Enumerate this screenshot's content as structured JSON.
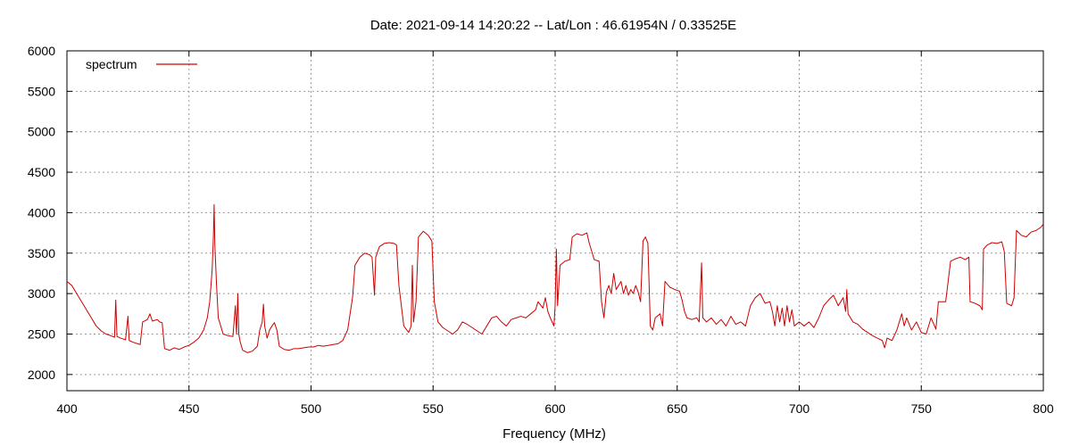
{
  "chart_data": {
    "type": "line",
    "title": "Date: 2021-09-14 14:20:22  --  Lat/Lon : 46.61954N / 0.33525E",
    "xlabel": "Frequency (MHz)",
    "ylabel": "",
    "xlim": [
      400,
      800
    ],
    "ylim": [
      1800,
      6000
    ],
    "x_ticks": [
      400,
      450,
      500,
      550,
      600,
      650,
      700,
      750,
      800
    ],
    "y_ticks": [
      2000,
      2500,
      3000,
      3500,
      4000,
      4500,
      5000,
      5500,
      6000
    ],
    "grid": true,
    "legend_position": "top-left",
    "series": [
      {
        "name": "spectrum",
        "color": "#cc0000",
        "points": [
          [
            400,
            3150
          ],
          [
            402,
            3100
          ],
          [
            404,
            3000
          ],
          [
            406,
            2900
          ],
          [
            408,
            2800
          ],
          [
            410,
            2700
          ],
          [
            412,
            2600
          ],
          [
            414,
            2540
          ],
          [
            416,
            2500
          ],
          [
            418,
            2480
          ],
          [
            419.5,
            2460
          ],
          [
            420,
            2920
          ],
          [
            420.5,
            2470
          ],
          [
            422,
            2450
          ],
          [
            424,
            2430
          ],
          [
            425,
            2720
          ],
          [
            425.5,
            2420
          ],
          [
            427,
            2400
          ],
          [
            429,
            2380
          ],
          [
            430,
            2370
          ],
          [
            431,
            2650
          ],
          [
            433,
            2680
          ],
          [
            434,
            2750
          ],
          [
            435,
            2660
          ],
          [
            437,
            2680
          ],
          [
            438,
            2650
          ],
          [
            439,
            2640
          ],
          [
            440,
            2320
          ],
          [
            442,
            2300
          ],
          [
            444,
            2330
          ],
          [
            446,
            2310
          ],
          [
            448,
            2340
          ],
          [
            450,
            2360
          ],
          [
            452,
            2400
          ],
          [
            454,
            2450
          ],
          [
            456,
            2550
          ],
          [
            457.5,
            2700
          ],
          [
            458.5,
            2900
          ],
          [
            459.5,
            3300
          ],
          [
            460,
            3700
          ],
          [
            460.3,
            4100
          ],
          [
            460.6,
            3600
          ],
          [
            461.3,
            3100
          ],
          [
            462,
            2700
          ],
          [
            463,
            2600
          ],
          [
            464,
            2500
          ],
          [
            466,
            2480
          ],
          [
            468,
            2470
          ],
          [
            469,
            2850
          ],
          [
            469.5,
            2500
          ],
          [
            470,
            3000
          ],
          [
            470.4,
            2500
          ],
          [
            471,
            2400
          ],
          [
            472,
            2300
          ],
          [
            474,
            2270
          ],
          [
            476,
            2290
          ],
          [
            478,
            2350
          ],
          [
            479,
            2550
          ],
          [
            480,
            2650
          ],
          [
            480.5,
            2870
          ],
          [
            481,
            2600
          ],
          [
            482,
            2450
          ],
          [
            483,
            2550
          ],
          [
            484,
            2600
          ],
          [
            485,
            2640
          ],
          [
            486,
            2550
          ],
          [
            487,
            2350
          ],
          [
            489,
            2310
          ],
          [
            491,
            2300
          ],
          [
            493,
            2320
          ],
          [
            495,
            2320
          ],
          [
            497,
            2330
          ],
          [
            499,
            2340
          ],
          [
            501,
            2340
          ],
          [
            503,
            2360
          ],
          [
            505,
            2350
          ],
          [
            507,
            2360
          ],
          [
            509,
            2370
          ],
          [
            511,
            2380
          ],
          [
            513,
            2420
          ],
          [
            515,
            2550
          ],
          [
            517,
            2950
          ],
          [
            518,
            3350
          ],
          [
            520,
            3450
          ],
          [
            522,
            3500
          ],
          [
            524,
            3480
          ],
          [
            525,
            3450
          ],
          [
            526,
            2980
          ],
          [
            526.5,
            3450
          ],
          [
            528,
            3580
          ],
          [
            530,
            3620
          ],
          [
            532,
            3630
          ],
          [
            534,
            3620
          ],
          [
            535,
            3600
          ],
          [
            536,
            3100
          ],
          [
            538,
            2600
          ],
          [
            540,
            2520
          ],
          [
            541,
            2600
          ],
          [
            541.5,
            3350
          ],
          [
            542,
            2650
          ],
          [
            543,
            2900
          ],
          [
            544,
            3700
          ],
          [
            546,
            3770
          ],
          [
            548,
            3720
          ],
          [
            549.5,
            3650
          ],
          [
            550.5,
            2900
          ],
          [
            552,
            2650
          ],
          [
            554,
            2580
          ],
          [
            556,
            2540
          ],
          [
            558,
            2500
          ],
          [
            560,
            2550
          ],
          [
            562,
            2650
          ],
          [
            564,
            2620
          ],
          [
            566,
            2580
          ],
          [
            568,
            2540
          ],
          [
            570,
            2500
          ],
          [
            572,
            2600
          ],
          [
            574,
            2700
          ],
          [
            576,
            2720
          ],
          [
            578,
            2650
          ],
          [
            580,
            2600
          ],
          [
            582,
            2680
          ],
          [
            584,
            2700
          ],
          [
            586,
            2720
          ],
          [
            588,
            2700
          ],
          [
            590,
            2750
          ],
          [
            592,
            2800
          ],
          [
            593,
            2900
          ],
          [
            595,
            2820
          ],
          [
            596,
            2950
          ],
          [
            597,
            2780
          ],
          [
            598,
            2700
          ],
          [
            599.5,
            2600
          ],
          [
            600,
            2850
          ],
          [
            600.5,
            3550
          ],
          [
            601,
            2850
          ],
          [
            602,
            3350
          ],
          [
            604,
            3400
          ],
          [
            606,
            3420
          ],
          [
            607,
            3700
          ],
          [
            609,
            3740
          ],
          [
            611,
            3720
          ],
          [
            613,
            3750
          ],
          [
            614,
            3620
          ],
          [
            616,
            3420
          ],
          [
            618,
            3400
          ],
          [
            619,
            2900
          ],
          [
            620,
            2700
          ],
          [
            621,
            3020
          ],
          [
            622,
            3100
          ],
          [
            623,
            3000
          ],
          [
            624,
            3250
          ],
          [
            625,
            3050
          ],
          [
            626,
            3100
          ],
          [
            627,
            3150
          ],
          [
            628,
            3000
          ],
          [
            629,
            3100
          ],
          [
            630,
            2980
          ],
          [
            631,
            3050
          ],
          [
            632,
            3000
          ],
          [
            633,
            3100
          ],
          [
            634,
            3020
          ],
          [
            635,
            2900
          ],
          [
            636,
            3650
          ],
          [
            637,
            3700
          ],
          [
            638,
            3620
          ],
          [
            639,
            2600
          ],
          [
            640,
            2550
          ],
          [
            641,
            2700
          ],
          [
            643,
            2750
          ],
          [
            644,
            2600
          ],
          [
            645,
            3150
          ],
          [
            647,
            3080
          ],
          [
            649,
            3050
          ],
          [
            651,
            3030
          ],
          [
            652,
            2920
          ],
          [
            653,
            2780
          ],
          [
            654,
            2700
          ],
          [
            656,
            2680
          ],
          [
            658,
            2700
          ],
          [
            659,
            2650
          ],
          [
            660,
            3380
          ],
          [
            660.5,
            2700
          ],
          [
            662,
            2650
          ],
          [
            664,
            2700
          ],
          [
            666,
            2620
          ],
          [
            668,
            2680
          ],
          [
            670,
            2600
          ],
          [
            672,
            2720
          ],
          [
            674,
            2620
          ],
          [
            676,
            2650
          ],
          [
            678,
            2600
          ],
          [
            680,
            2850
          ],
          [
            682,
            2950
          ],
          [
            684,
            3000
          ],
          [
            686,
            2880
          ],
          [
            688,
            2900
          ],
          [
            689,
            2780
          ],
          [
            690,
            2600
          ],
          [
            691,
            2850
          ],
          [
            692,
            2650
          ],
          [
            693,
            2820
          ],
          [
            694,
            2600
          ],
          [
            695,
            2850
          ],
          [
            696,
            2650
          ],
          [
            697,
            2800
          ],
          [
            698,
            2600
          ],
          [
            700,
            2650
          ],
          [
            702,
            2600
          ],
          [
            704,
            2650
          ],
          [
            706,
            2580
          ],
          [
            708,
            2700
          ],
          [
            710,
            2850
          ],
          [
            712,
            2920
          ],
          [
            714,
            2980
          ],
          [
            716,
            2850
          ],
          [
            718,
            2950
          ],
          [
            719,
            2780
          ],
          [
            719.5,
            3050
          ],
          [
            720,
            2750
          ],
          [
            722,
            2650
          ],
          [
            724,
            2620
          ],
          [
            726,
            2560
          ],
          [
            728,
            2520
          ],
          [
            730,
            2480
          ],
          [
            732,
            2450
          ],
          [
            734,
            2420
          ],
          [
            735,
            2330
          ],
          [
            736,
            2450
          ],
          [
            738,
            2420
          ],
          [
            740,
            2550
          ],
          [
            742,
            2750
          ],
          [
            743,
            2600
          ],
          [
            744,
            2700
          ],
          [
            746,
            2550
          ],
          [
            748,
            2650
          ],
          [
            750,
            2520
          ],
          [
            752,
            2500
          ],
          [
            754,
            2700
          ],
          [
            756,
            2560
          ],
          [
            757,
            2900
          ],
          [
            760,
            2900
          ],
          [
            762,
            3400
          ],
          [
            764,
            3430
          ],
          [
            766,
            3450
          ],
          [
            768,
            3420
          ],
          [
            769.5,
            3450
          ],
          [
            770,
            2900
          ],
          [
            772,
            2880
          ],
          [
            774,
            2850
          ],
          [
            775,
            2800
          ],
          [
            775.5,
            3550
          ],
          [
            777,
            3600
          ],
          [
            779,
            3630
          ],
          [
            781,
            3620
          ],
          [
            783,
            3640
          ],
          [
            784,
            3520
          ],
          [
            785,
            2880
          ],
          [
            787,
            2850
          ],
          [
            788,
            2950
          ],
          [
            789,
            3780
          ],
          [
            791,
            3720
          ],
          [
            793,
            3700
          ],
          [
            795,
            3760
          ],
          [
            797,
            3780
          ],
          [
            799,
            3820
          ],
          [
            800,
            3860
          ]
        ]
      }
    ]
  }
}
